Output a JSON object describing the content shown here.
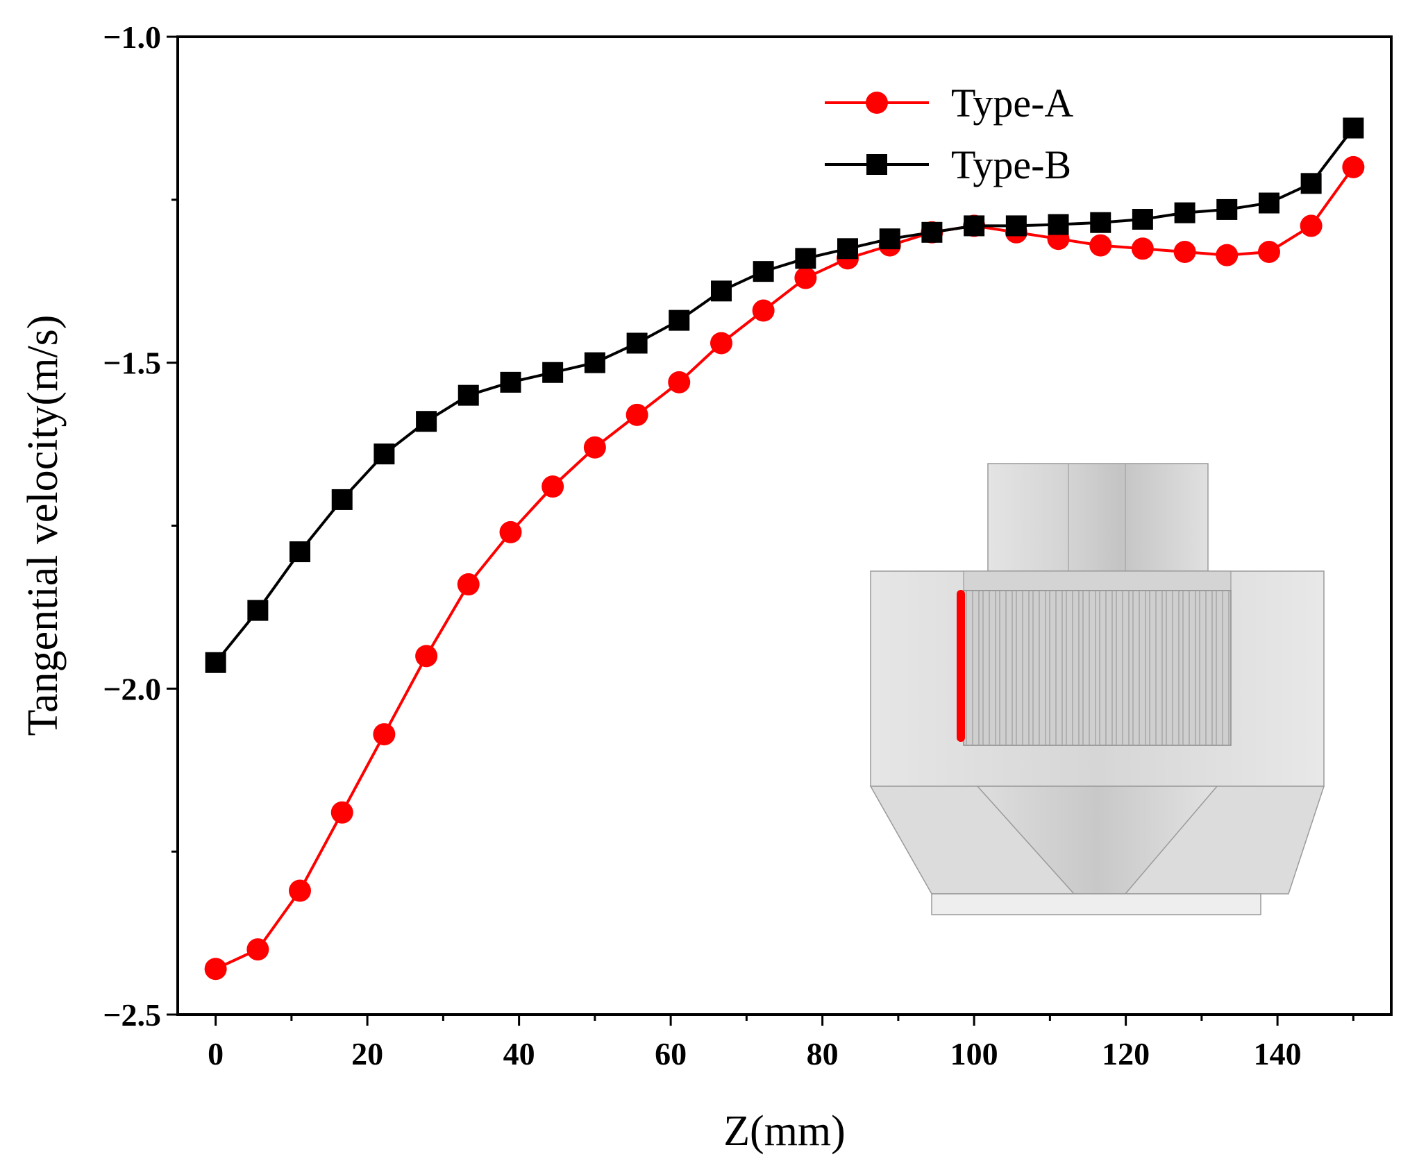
{
  "chart_data": {
    "type": "line",
    "title": "",
    "xlabel": "Z(mm)",
    "ylabel": "Tangential velocity(m/s)",
    "xlim": [
      -5,
      155
    ],
    "ylim": [
      -2.5,
      -1.0
    ],
    "x_ticks": [
      0,
      20,
      40,
      60,
      80,
      100,
      120,
      140
    ],
    "x_tick_labels": [
      "0",
      "20",
      "40",
      "60",
      "80",
      "100",
      "120",
      "140"
    ],
    "y_ticks": [
      -2.5,
      -2.0,
      -1.5,
      -1.0
    ],
    "y_tick_labels": [
      "−2.5",
      "−2.0",
      "−1.5",
      "−1.0"
    ],
    "grid": false,
    "legend_position": "top-right",
    "x": [
      0,
      5.56,
      11.11,
      16.67,
      22.22,
      27.78,
      33.33,
      38.89,
      44.44,
      50,
      55.56,
      61.11,
      66.67,
      72.22,
      77.78,
      83.33,
      88.89,
      94.44,
      100,
      105.56,
      111.11,
      116.67,
      122.22,
      127.78,
      133.33,
      138.89,
      144.44,
      150
    ],
    "series": [
      {
        "name": "Type-A",
        "color": "#ff0000",
        "marker": "circle",
        "values": [
          -2.43,
          -2.4,
          -2.31,
          -2.19,
          -2.07,
          -1.95,
          -1.84,
          -1.76,
          -1.69,
          -1.63,
          -1.58,
          -1.53,
          -1.47,
          -1.42,
          -1.37,
          -1.34,
          -1.32,
          -1.3,
          -1.29,
          -1.3,
          -1.31,
          -1.32,
          -1.325,
          -1.33,
          -1.335,
          -1.33,
          -1.29,
          -1.2
        ]
      },
      {
        "name": "Type-B",
        "color": "#000000",
        "marker": "square",
        "values": [
          -1.96,
          -1.88,
          -1.79,
          -1.71,
          -1.64,
          -1.59,
          -1.55,
          -1.53,
          -1.515,
          -1.5,
          -1.47,
          -1.435,
          -1.39,
          -1.36,
          -1.34,
          -1.325,
          -1.31,
          -1.3,
          -1.29,
          -1.29,
          -1.288,
          -1.285,
          -1.28,
          -1.27,
          -1.265,
          -1.255,
          -1.225,
          -1.14
        ]
      }
    ],
    "inset": {
      "description": "apparatus drawing",
      "highlight_color": "#ff0000"
    }
  }
}
